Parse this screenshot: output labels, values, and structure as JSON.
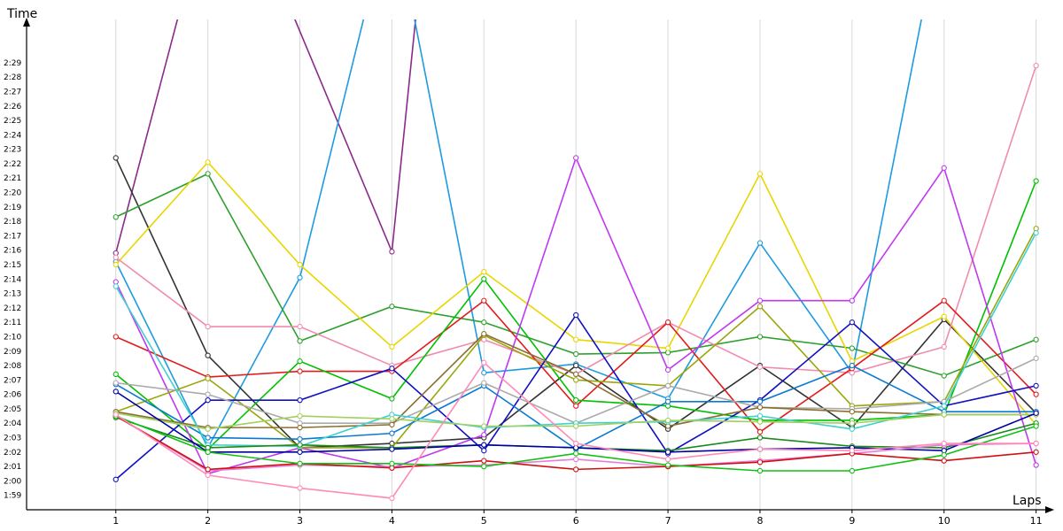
{
  "chart_data": {
    "type": "line",
    "title": "",
    "xlabel": "Laps",
    "ylabel": "Time",
    "x": [
      1,
      2,
      3,
      4,
      5,
      6,
      7,
      8,
      9,
      10,
      11
    ],
    "xlim": [
      0.03,
      11.1
    ],
    "ylim": [
      118,
      152
    ],
    "y_unit": "seconds",
    "y_ticks": [
      119,
      120,
      121,
      122,
      123,
      124,
      125,
      126,
      127,
      128,
      129,
      130,
      131,
      132,
      133,
      134,
      135,
      136,
      137,
      138,
      139,
      140,
      141,
      142,
      143,
      144,
      145,
      146,
      147,
      148,
      149
    ],
    "y_tick_labels": [
      "1:59",
      "2:00",
      "2:01",
      "2:02",
      "2:03",
      "2:04",
      "2:05",
      "2:06",
      "2:07",
      "2:08",
      "2:09",
      "2:10",
      "2:11",
      "2:12",
      "2:13",
      "2:14",
      "2:15",
      "2:16",
      "2:17",
      "2:18",
      "2:19",
      "2:20",
      "2:21",
      "2:22",
      "2:23",
      "2:24",
      "2:25",
      "2:26",
      "2:27",
      "2:28",
      "2:29"
    ],
    "grid": true,
    "legend": "none",
    "series": [
      {
        "color": "#8b2a8b",
        "values": [
          135.8,
          160,
          null,
          135.9,
          null,
          null,
          null,
          null,
          null,
          null,
          null
        ],
        "break_up_between": [
          3,
          4
        ]
      },
      {
        "color": "#1e9be0",
        "values": [
          135.2,
          122.3,
          134.1,
          160,
          127.5,
          128.1,
          125.7,
          136.5,
          127.5,
          160,
          null
        ]
      },
      {
        "color": "#333333",
        "values": [
          142.4,
          128.7,
          122.3,
          122.6,
          123.0,
          128.0,
          123.6,
          128.0,
          123.7,
          131.2,
          124.7
        ]
      },
      {
        "color": "#2ea02e",
        "values": [
          138.3,
          141.3,
          129.7,
          132.1,
          131.0,
          128.8,
          128.9,
          130.0,
          129.2,
          127.3,
          129.8
        ]
      },
      {
        "color": "#e8d600",
        "values": [
          135.0,
          142.1,
          135.0,
          129.3,
          134.5,
          129.8,
          129.2,
          141.3,
          128.3,
          131.4,
          123.9
        ]
      },
      {
        "color": "#f08cb0",
        "values": [
          135.5,
          130.7,
          130.7,
          128.0,
          129.8,
          127.4,
          131.0,
          127.9,
          127.5,
          129.3,
          148.8
        ]
      },
      {
        "color": "#e31a1c",
        "values": [
          130.0,
          127.2,
          127.6,
          127.6,
          132.5,
          125.2,
          131.0,
          123.4,
          127.8,
          132.5,
          126.0
        ]
      },
      {
        "color": "#00c000",
        "values": [
          127.4,
          122.2,
          128.3,
          125.7,
          134.0,
          125.6,
          125.2,
          124.2,
          124.2,
          124.6,
          140.8
        ]
      },
      {
        "color": "#c039f0",
        "values": [
          133.8,
          120.5,
          122.3,
          120.9,
          123.2,
          142.4,
          127.7,
          132.5,
          132.5,
          141.7,
          121.1
        ]
      },
      {
        "color": "#9aa60a",
        "values": [
          124.8,
          127.1,
          122.3,
          122.3,
          130.1,
          127.0,
          126.6,
          132.1,
          125.2,
          125.5,
          137.5
        ]
      },
      {
        "color": "#1010c0",
        "values": [
          120.1,
          125.6,
          125.6,
          127.8,
          122.1,
          131.5,
          121.9,
          125.6,
          131.0,
          125.2,
          126.6
        ]
      },
      {
        "color": "#0a7ad0",
        "values": [
          126.7,
          123.0,
          122.9,
          123.3,
          126.6,
          122.2,
          125.5,
          125.5,
          128.0,
          124.8,
          124.8
        ]
      },
      {
        "color": "#aaaaaa",
        "values": [
          126.8,
          126.0,
          124.0,
          124.0,
          126.8,
          124.0,
          126.6,
          125.1,
          125.0,
          125.5,
          128.5
        ]
      },
      {
        "color": "#8a6e2e",
        "values": [
          124.8,
          123.7,
          123.7,
          123.9,
          130.2,
          127.4,
          123.8,
          125.1,
          124.8,
          124.6,
          124.6
        ]
      },
      {
        "color": "#40d0d0",
        "values": [
          133.5,
          122.5,
          122.4,
          124.6,
          123.7,
          124.0,
          124.1,
          124.5,
          123.6,
          125.2,
          137.2
        ]
      },
      {
        "color": "#a0d060",
        "values": [
          124.7,
          123.6,
          124.5,
          124.3,
          123.8,
          123.8,
          124.2,
          124.1,
          124.0,
          124.6,
          124.6
        ]
      },
      {
        "color": "#1a8a1a",
        "values": [
          124.4,
          122.3,
          122.5,
          122.3,
          122.5,
          122.3,
          122.1,
          123.0,
          122.4,
          122.3,
          124.0
        ]
      },
      {
        "color": "#0000a0",
        "values": [
          126.2,
          122.0,
          122.0,
          122.2,
          122.5,
          122.3,
          122.0,
          122.2,
          122.3,
          122.1,
          124.7
        ]
      },
      {
        "color": "#e87ad8",
        "values": [
          124.5,
          120.7,
          121.1,
          121.0,
          121.1,
          121.5,
          121.0,
          121.4,
          121.9,
          122.5,
          122.6
        ]
      },
      {
        "color": "#d01010",
        "values": [
          124.5,
          120.8,
          121.2,
          120.9,
          121.4,
          120.8,
          121.0,
          121.3,
          121.9,
          121.4,
          122.0
        ]
      },
      {
        "color": "#10c010",
        "values": [
          124.5,
          122.0,
          121.2,
          121.2,
          121.0,
          121.9,
          121.1,
          120.7,
          120.7,
          121.8,
          123.8
        ]
      },
      {
        "color": "#ff8ab8",
        "values": [
          124.6,
          120.4,
          119.5,
          118.8,
          128.2,
          122.6,
          121.5,
          122.2,
          122.1,
          122.6,
          122.6
        ]
      }
    ]
  }
}
